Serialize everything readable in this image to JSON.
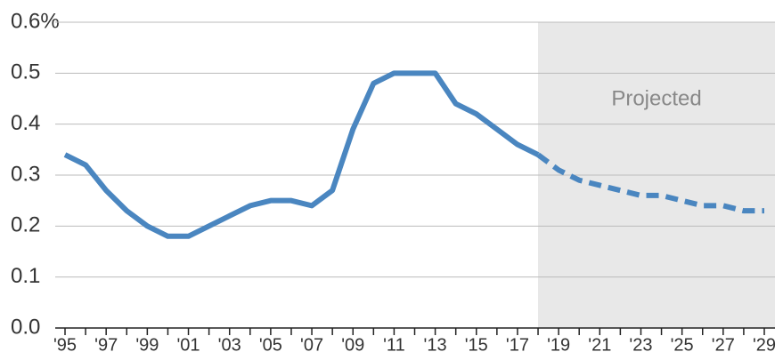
{
  "chart_data": {
    "type": "line",
    "categories": [
      "'95",
      null,
      "'97",
      null,
      "'99",
      null,
      "'01",
      null,
      "'03",
      null,
      "'05",
      null,
      "'07",
      null,
      "'09",
      null,
      "'11",
      null,
      "'13",
      null,
      "'15",
      null,
      "'17",
      null,
      "'19",
      null,
      "'21",
      null,
      "'23",
      null,
      "'25",
      null,
      "'27",
      null,
      "'29"
    ],
    "series": [
      {
        "color": "#4a86c0",
        "dashed": false,
        "values": [
          0.34,
          0.32,
          0.27,
          0.23,
          0.2,
          0.18,
          0.18,
          0.2,
          0.22,
          0.24,
          0.25,
          0.25,
          0.24,
          0.27,
          0.39,
          0.48,
          0.5,
          0.5,
          0.5,
          0.44,
          0.42,
          0.39,
          0.36,
          0.34,
          null,
          null,
          null,
          null,
          null,
          null,
          null,
          null,
          null,
          null,
          null
        ]
      },
      {
        "color": "#4a86c0",
        "dashed": true,
        "values": [
          null,
          null,
          null,
          null,
          null,
          null,
          null,
          null,
          null,
          null,
          null,
          null,
          null,
          null,
          null,
          null,
          null,
          null,
          null,
          null,
          null,
          null,
          null,
          0.34,
          0.31,
          0.29,
          0.28,
          0.27,
          0.26,
          0.26,
          0.25,
          0.24,
          0.24,
          0.23,
          0.23
        ]
      }
    ],
    "annotation": "Projected",
    "ylim": [
      0,
      0.6
    ],
    "yticks": [
      {
        "value": 0,
        "label": "0.0"
      },
      0.1,
      0.2,
      0.3,
      0.4,
      0.5,
      {
        "value": 0.6,
        "label": "0.6%"
      }
    ],
    "grid": true
  }
}
